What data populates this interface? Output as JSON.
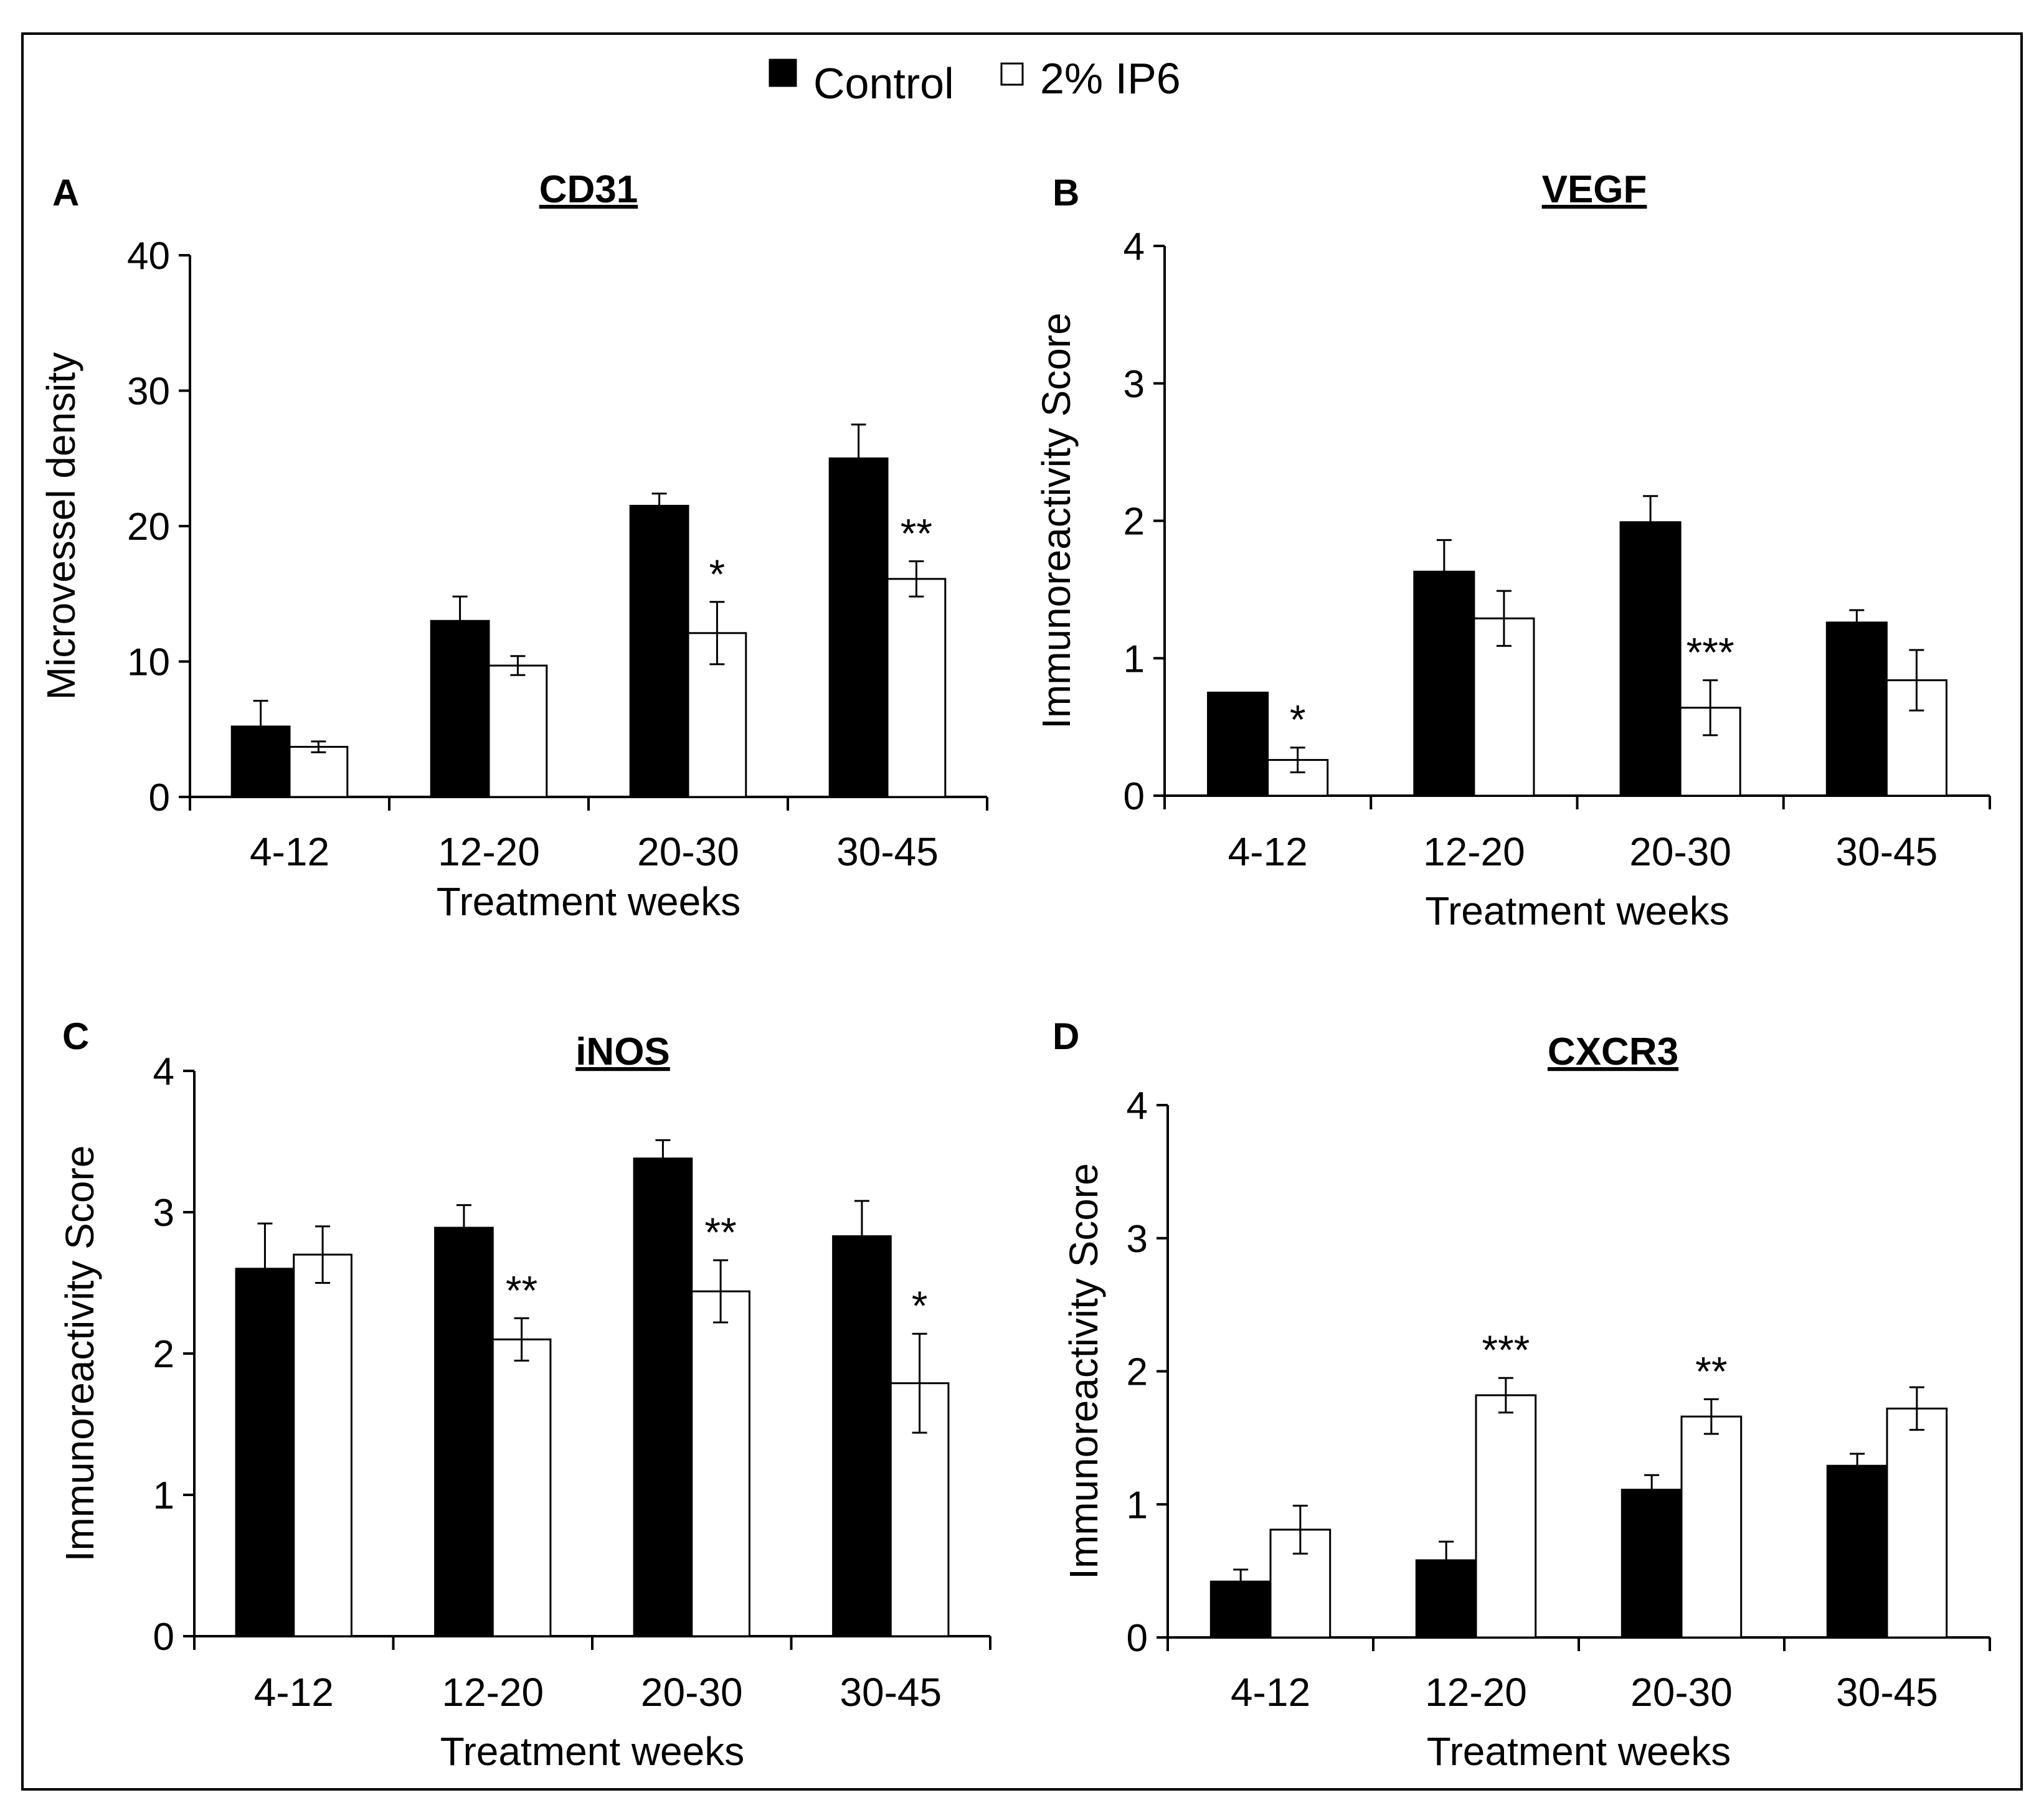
{
  "legend": [
    {
      "name": "Control",
      "color": "#000000"
    },
    {
      "name": "2% IP6",
      "color": "#ffffff"
    }
  ],
  "chart_data": [
    {
      "type": "bar",
      "panel": "A",
      "title": "CD31",
      "xlabel": "Treatment weeks",
      "ylabel": "Microvessel density",
      "ylim": [
        0,
        40
      ],
      "yticks": [
        0,
        10,
        20,
        30,
        40
      ],
      "categories": [
        "4-12",
        "12-20",
        "20-30",
        "30-45"
      ],
      "series": [
        {
          "name": "Control",
          "values": [
            5.2,
            13.0,
            21.5,
            25.0
          ],
          "errors": [
            1.9,
            1.8,
            0.9,
            2.5
          ]
        },
        {
          "name": "2% IP6",
          "values": [
            3.7,
            9.7,
            12.1,
            16.1
          ],
          "errors": [
            0.4,
            0.7,
            2.3,
            1.3
          ]
        }
      ],
      "annotations": [
        {
          "category": "20-30",
          "series": "2% IP6",
          "text": "*"
        },
        {
          "category": "30-45",
          "series": "2% IP6",
          "text": "**"
        }
      ]
    },
    {
      "type": "bar",
      "panel": "B",
      "title": "VEGF",
      "xlabel": "Treatment weeks",
      "ylabel": "Immunoreactivity Score",
      "ylim": [
        0,
        4
      ],
      "yticks": [
        0,
        1,
        2,
        3,
        4
      ],
      "categories": [
        "4-12",
        "12-20",
        "20-30",
        "30-45"
      ],
      "series": [
        {
          "name": "Control",
          "values": [
            0.75,
            1.63,
            1.99,
            1.26
          ],
          "errors": [
            0,
            0.23,
            0.19,
            0.09
          ]
        },
        {
          "name": "2% IP6",
          "values": [
            0.26,
            1.29,
            0.64,
            0.84
          ],
          "errors": [
            0.09,
            0.2,
            0.2,
            0.22
          ]
        }
      ],
      "annotations": [
        {
          "category": "4-12",
          "series": "2% IP6",
          "text": "*"
        },
        {
          "category": "20-30",
          "series": "2% IP6",
          "text": "***"
        }
      ]
    },
    {
      "type": "bar",
      "panel": "C",
      "title": "iNOS",
      "xlabel": "Treatment weeks",
      "ylabel": "Immunoreactivity Score",
      "ylim": [
        0,
        4
      ],
      "yticks": [
        0,
        1,
        2,
        3,
        4
      ],
      "categories": [
        "4-12",
        "12-20",
        "20-30",
        "30-45"
      ],
      "series": [
        {
          "name": "Control",
          "values": [
            2.6,
            2.89,
            3.38,
            2.83
          ],
          "errors": [
            0.32,
            0.16,
            0.13,
            0.25
          ]
        },
        {
          "name": "2% IP6",
          "values": [
            2.7,
            2.1,
            2.44,
            1.79
          ],
          "errors": [
            0.2,
            0.15,
            0.22,
            0.35
          ]
        }
      ],
      "annotations": [
        {
          "category": "12-20",
          "series": "2% IP6",
          "text": "**"
        },
        {
          "category": "20-30",
          "series": "2% IP6",
          "text": "**"
        },
        {
          "category": "30-45",
          "series": "2% IP6",
          "text": "*"
        }
      ]
    },
    {
      "type": "bar",
      "panel": "D",
      "title": "CXCR3",
      "xlabel": "Treatment weeks",
      "ylabel": "Immunoreactivity Score",
      "ylim": [
        0,
        4
      ],
      "yticks": [
        0,
        1,
        2,
        3,
        4
      ],
      "categories": [
        "4-12",
        "12-20",
        "20-30",
        "30-45"
      ],
      "series": [
        {
          "name": "Control",
          "values": [
            0.42,
            0.58,
            1.11,
            1.29
          ],
          "errors": [
            0.09,
            0.14,
            0.11,
            0.09
          ]
        },
        {
          "name": "2% IP6",
          "values": [
            0.81,
            1.82,
            1.66,
            1.72
          ],
          "errors": [
            0.18,
            0.13,
            0.13,
            0.16
          ]
        }
      ],
      "annotations": [
        {
          "category": "12-20",
          "series": "2% IP6",
          "text": "***"
        },
        {
          "category": "20-30",
          "series": "2% IP6",
          "text": "**"
        }
      ]
    }
  ]
}
